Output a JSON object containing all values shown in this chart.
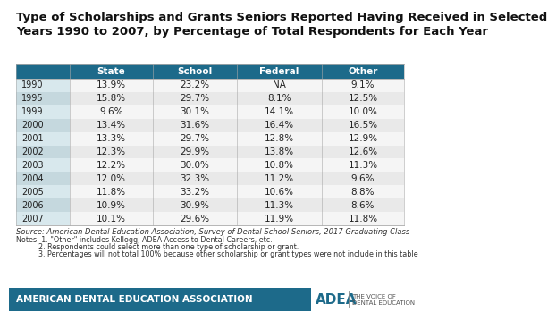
{
  "title": "Type of Scholarships and Grants Seniors Reported Having Received in Selected\nYears 1990 to 2007, by Percentage of Total Respondents for Each Year",
  "columns": [
    "State",
    "School",
    "Federal",
    "Other"
  ],
  "rows": [
    {
      "year": "1990",
      "State": "13.9%",
      "School": "23.2%",
      "Federal": "NA",
      "Other": "9.1%"
    },
    {
      "year": "1995",
      "State": "15.8%",
      "School": "29.7%",
      "Federal": "8.1%",
      "Other": "12.5%"
    },
    {
      "year": "1999",
      "State": "9.6%",
      "School": "30.1%",
      "Federal": "14.1%",
      "Other": "10.0%"
    },
    {
      "year": "2000",
      "State": "13.4%",
      "School": "31.6%",
      "Federal": "16.4%",
      "Other": "16.5%"
    },
    {
      "year": "2001",
      "State": "13.3%",
      "School": "29.7%",
      "Federal": "12.8%",
      "Other": "12.9%"
    },
    {
      "year": "2002",
      "State": "12.3%",
      "School": "29.9%",
      "Federal": "13.8%",
      "Other": "12.6%"
    },
    {
      "year": "2003",
      "State": "12.2%",
      "School": "30.0%",
      "Federal": "10.8%",
      "Other": "11.3%"
    },
    {
      "year": "2004",
      "State": "12.0%",
      "School": "32.3%",
      "Federal": "11.2%",
      "Other": "9.6%"
    },
    {
      "year": "2005",
      "State": "11.8%",
      "School": "33.2%",
      "Federal": "10.6%",
      "Other": "8.8%"
    },
    {
      "year": "2006",
      "State": "10.9%",
      "School": "30.9%",
      "Federal": "11.3%",
      "Other": "8.6%"
    },
    {
      "year": "2007",
      "State": "10.1%",
      "School": "29.6%",
      "Federal": "11.9%",
      "Other": "11.8%"
    }
  ],
  "header_bg": "#1d6a8a",
  "header_text": "#ffffff",
  "row_odd_bg": "#e9e9e9",
  "row_even_bg": "#f5f5f5",
  "year_col_bg_odd": "#c5d8de",
  "year_col_bg_even": "#d8e8ed",
  "footer_bg": "#1d6a8a",
  "footer_text": "#ffffff",
  "adea_white_bg": "#ffffff",
  "source_text": "Source: American Dental Education Association, Survey of Dental School Seniors, 2017 Graduating Class",
  "note1": "Notes: 1. \"Other\" includes Kellogg, ADEA Access to Dental Careers, etc.",
  "note2": "          2. Respondents could select more than one type of scholarship or grant.",
  "note3": "          3. Percentages will not total 100% because other scholarship or grant types were not include in this table",
  "footer_left": "AMERICAN DENTAL EDUCATION ASSOCIATION",
  "title_fontsize": 9.5,
  "header_fontsize": 7.5,
  "cell_fontsize": 7.5,
  "year_fontsize": 7.0,
  "source_fontsize": 6.0,
  "notes_fontsize": 5.8,
  "footer_fontsize": 7.5,
  "adea_fontsize": 11,
  "adea_small_fontsize": 5
}
